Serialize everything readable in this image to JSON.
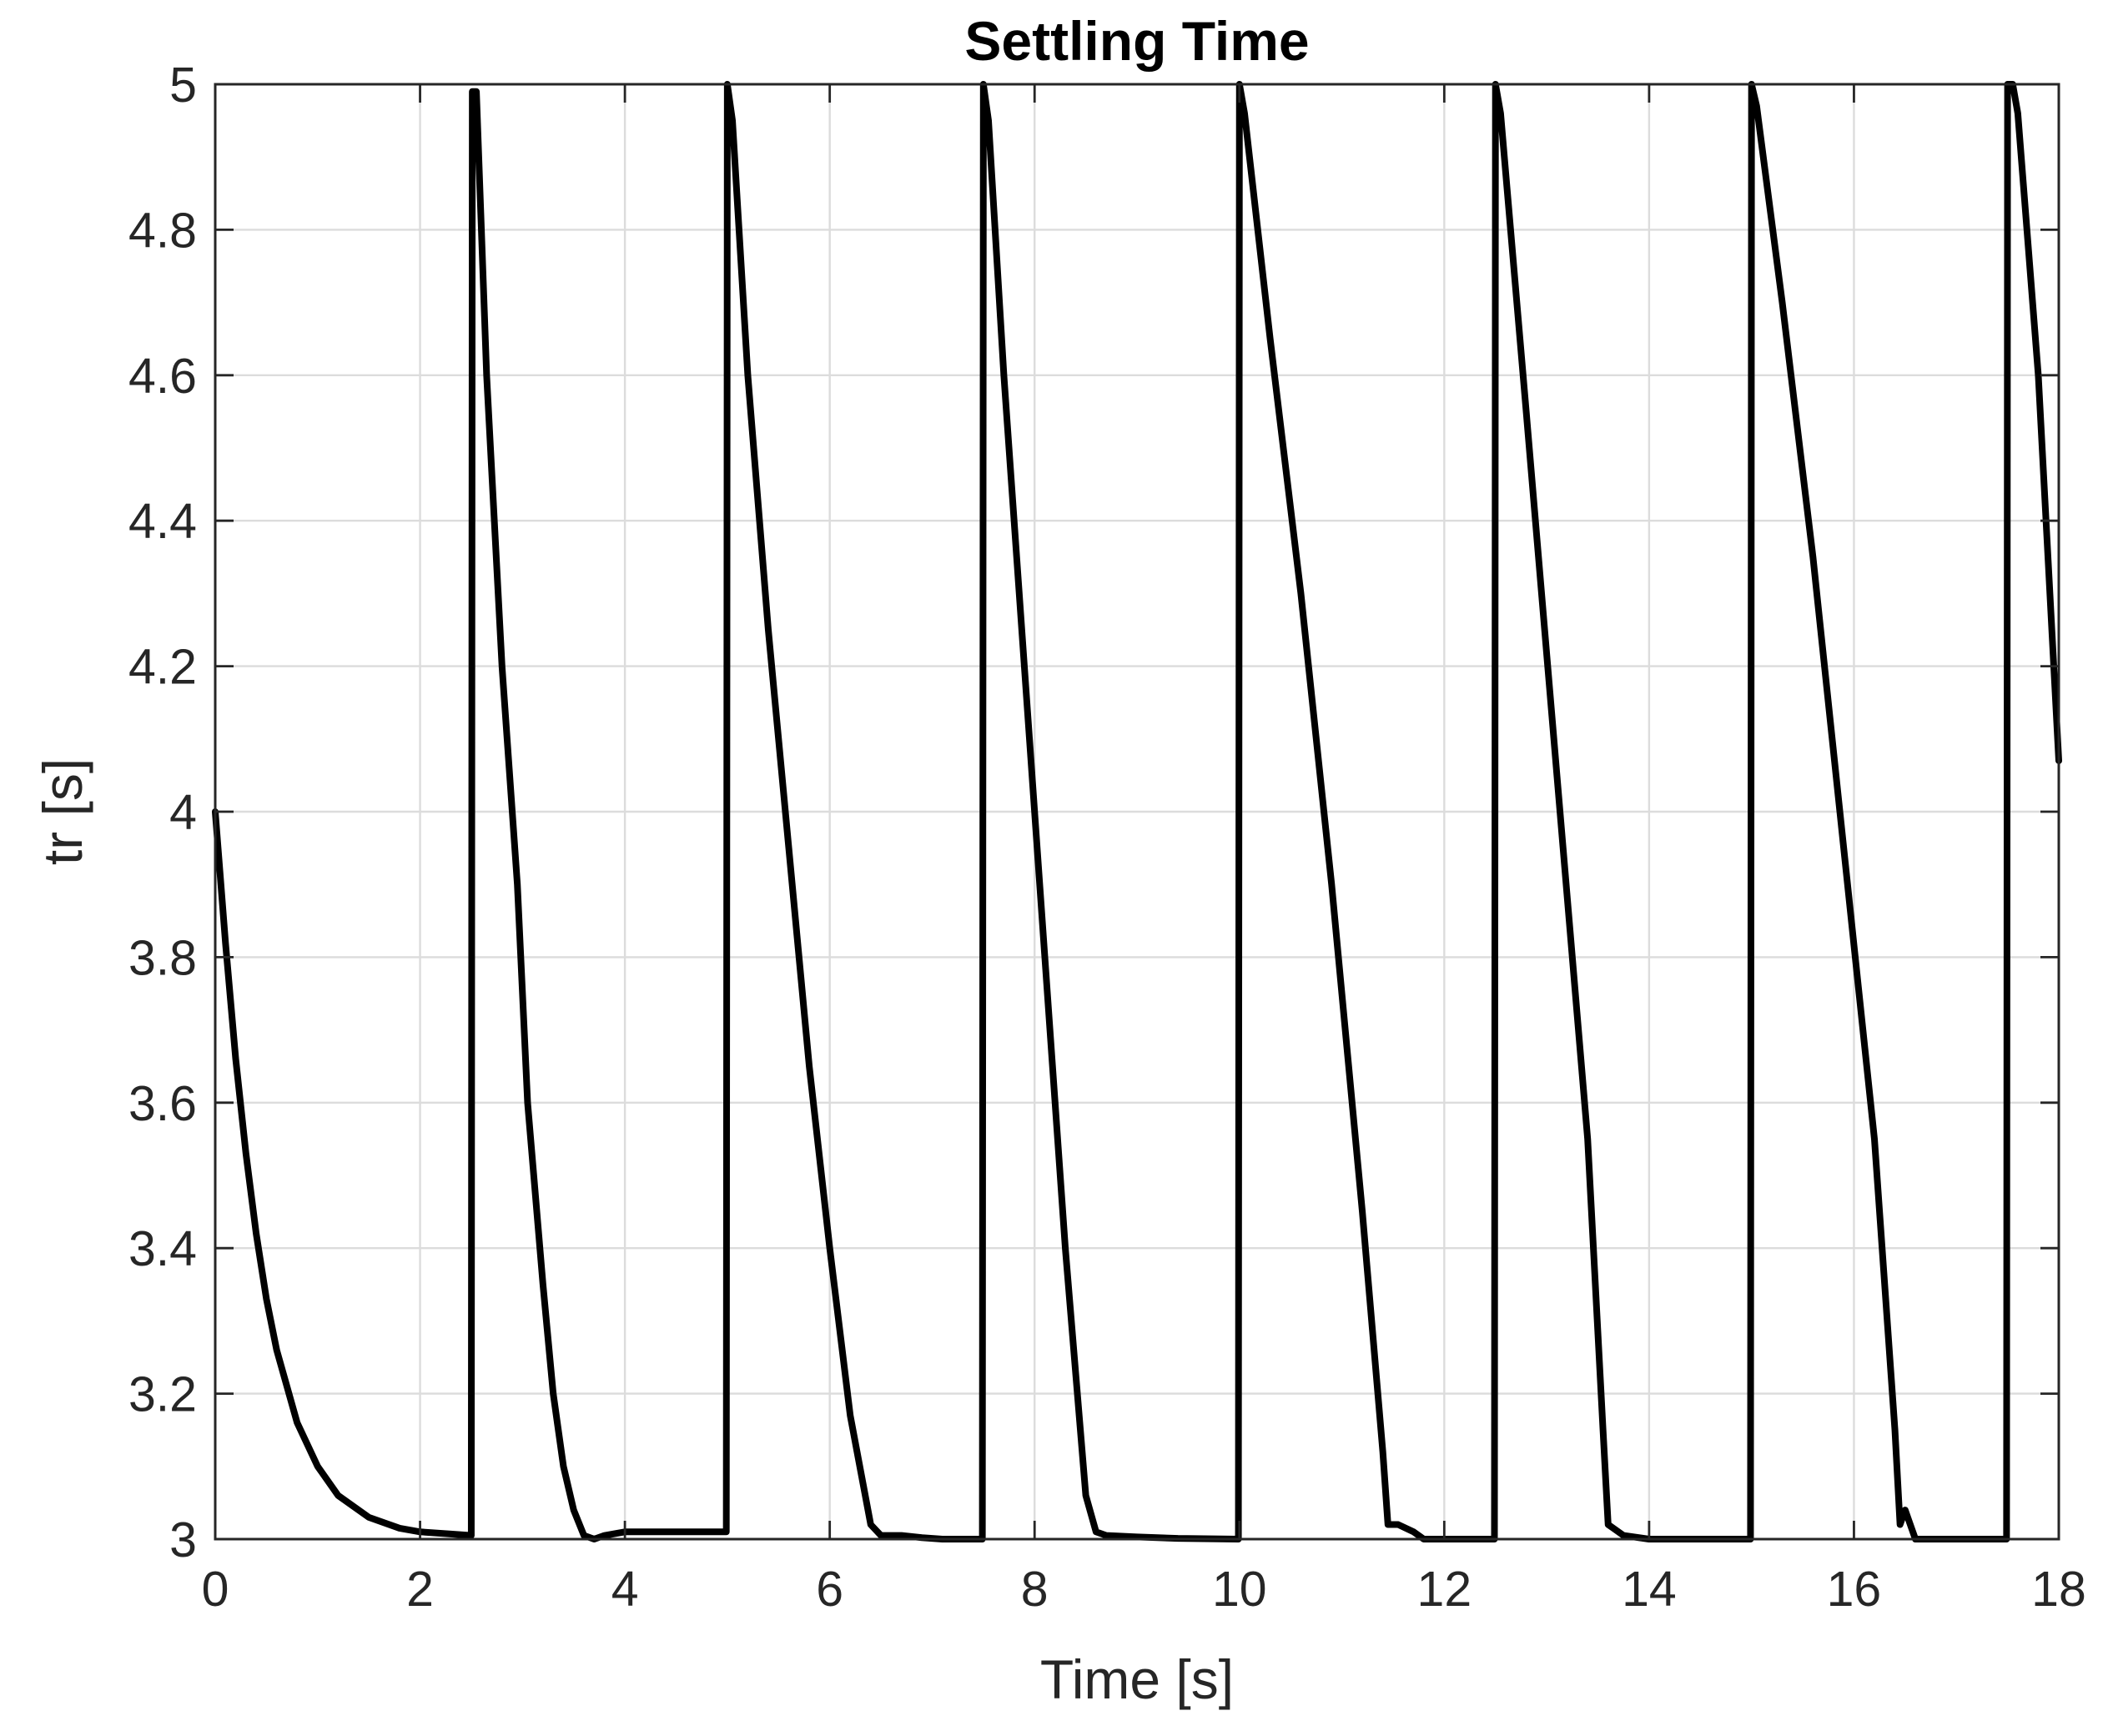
{
  "chart_data": {
    "type": "line",
    "title": "Settling Time",
    "xlabel": "Time [s]",
    "ylabel": "tr [s]",
    "xlim": [
      0,
      18
    ],
    "ylim": [
      3,
      5
    ],
    "grid": true,
    "x_ticks": [
      0,
      2,
      4,
      6,
      8,
      10,
      12,
      14,
      16,
      18
    ],
    "y_ticks": [
      3,
      3.2,
      3.4,
      3.6,
      3.8,
      4,
      4.2,
      4.4,
      4.6,
      4.8,
      5
    ],
    "x_tick_labels": [
      "0",
      "2",
      "4",
      "6",
      "8",
      "10",
      "12",
      "14",
      "16",
      "18"
    ],
    "y_tick_labels": [
      "3",
      "3.2",
      "3.4",
      "3.6",
      "3.8",
      "4",
      "4.2",
      "4.4",
      "4.6",
      "4.8",
      "5"
    ],
    "colors": {
      "line": "#000000",
      "grid": "#dcdcdc",
      "axes": "#262626"
    },
    "series": [
      {
        "color": "#000000",
        "x": [
          0,
          0.1,
          0.2,
          0.3,
          0.4,
          0.5,
          0.6,
          0.8,
          1.0,
          1.2,
          1.5,
          1.8,
          2.0,
          2.3,
          2.5,
          2.51,
          2.55,
          2.65,
          2.8,
          2.95,
          3.05,
          3.2,
          3.3,
          3.4,
          3.5,
          3.6,
          3.7,
          3.8,
          4.0,
          4.4,
          4.8,
          4.99,
          5.0,
          5.05,
          5.2,
          5.4,
          5.6,
          5.8,
          6.0,
          6.2,
          6.4,
          6.5,
          6.7,
          6.9,
          7.1,
          7.49,
          7.5,
          7.55,
          7.7,
          7.9,
          8.1,
          8.3,
          8.5,
          8.6,
          8.7,
          9.0,
          9.4,
          9.99,
          10.0,
          10.05,
          10.3,
          10.6,
          10.9,
          11.2,
          11.4,
          11.45,
          11.55,
          11.7,
          11.8,
          12.0,
          12.49,
          12.5,
          12.55,
          12.8,
          13.1,
          13.4,
          13.55,
          13.6,
          13.65,
          13.75,
          14.0,
          14.5,
          14.99,
          15.0,
          15.05,
          15.3,
          15.6,
          15.9,
          16.2,
          16.4,
          16.45,
          16.5,
          16.55,
          16.6,
          16.8,
          17.2,
          17.49,
          17.5,
          17.55,
          17.6,
          17.8,
          18.0
        ],
        "y": [
          4.0,
          3.82,
          3.66,
          3.53,
          3.42,
          3.33,
          3.26,
          3.16,
          3.1,
          3.06,
          3.03,
          3.015,
          3.01,
          3.007,
          3.005,
          4.99,
          4.99,
          4.6,
          4.2,
          3.9,
          3.6,
          3.35,
          3.2,
          3.1,
          3.04,
          3.005,
          3.0,
          3.005,
          3.01,
          3.01,
          3.01,
          3.01,
          5.0,
          4.95,
          4.6,
          4.25,
          3.95,
          3.65,
          3.4,
          3.17,
          3.02,
          3.005,
          3.005,
          3.002,
          3.0,
          3.0,
          5.0,
          4.95,
          4.6,
          4.2,
          3.8,
          3.4,
          3.06,
          3.01,
          3.005,
          3.003,
          3.001,
          3.0,
          5.0,
          4.96,
          4.65,
          4.3,
          3.9,
          3.45,
          3.12,
          3.02,
          3.02,
          3.01,
          3.0,
          3.0,
          3.0,
          5.0,
          4.96,
          4.55,
          4.05,
          3.55,
          3.15,
          3.02,
          3.015,
          3.005,
          3.0,
          3.0,
          3.0,
          5.0,
          4.97,
          4.7,
          4.35,
          3.95,
          3.55,
          3.15,
          3.02,
          3.04,
          3.02,
          3.0,
          3.0,
          3.0,
          3.0,
          5.0,
          5.0,
          4.96,
          4.6,
          4.07
        ]
      }
    ]
  }
}
